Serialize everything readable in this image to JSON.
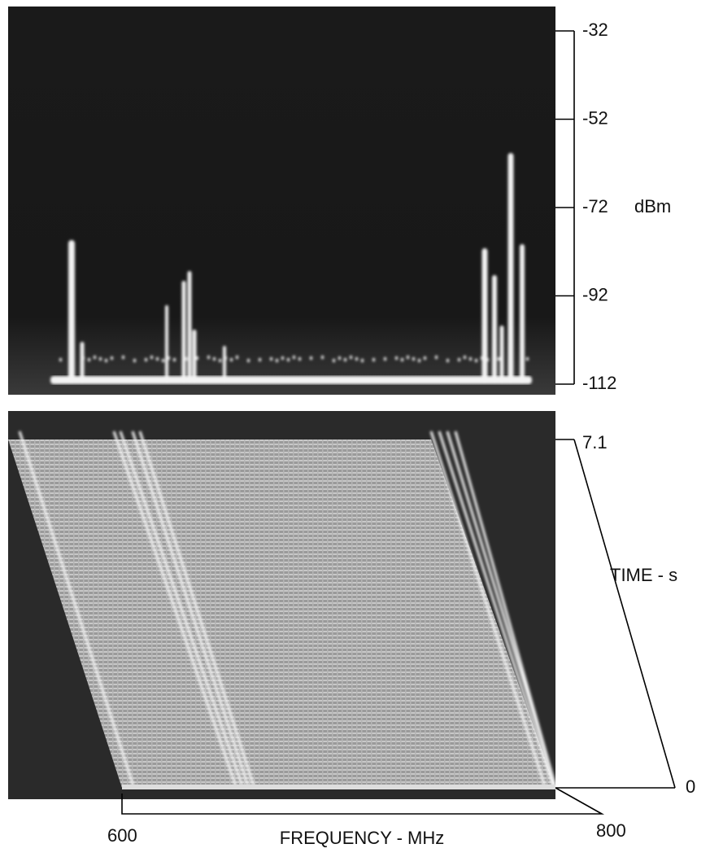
{
  "spectrum_panel": {
    "y_axis_label": "dBm",
    "yticks": [
      -32,
      -52,
      -72,
      -92,
      -112
    ]
  },
  "waterfall_panel": {
    "time_axis_label": "TIME - s",
    "time_ticks": [
      7.1,
      0
    ],
    "frequency_axis_label": "FREQUENCY - MHz",
    "frequency_ticks": [
      600,
      800
    ]
  }
}
